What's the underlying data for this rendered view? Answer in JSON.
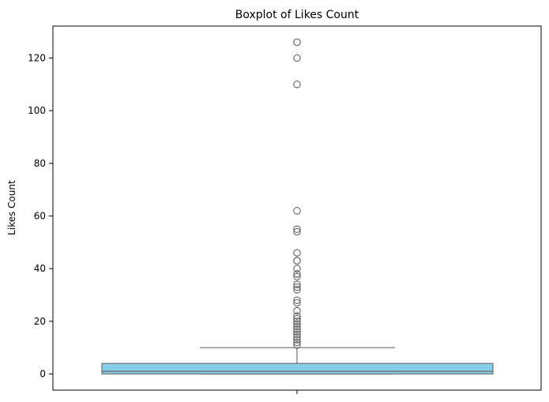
{
  "colors": {
    "box_fill": "#87ceeb",
    "stroke": "#6e6e6e",
    "axis": "#000000",
    "background": "#ffffff"
  },
  "chart_data": {
    "type": "box",
    "title": "Boxplot of Likes Count",
    "xlabel": "",
    "ylabel": "Likes Count",
    "ylim": [
      -2,
      132
    ],
    "yticks": [
      0,
      20,
      40,
      60,
      80,
      100,
      120
    ],
    "grid": false,
    "box": {
      "min": 0,
      "q1": 0,
      "median": 1,
      "q3": 4,
      "whisker_low": 0,
      "whisker_high": 10
    },
    "outliers": [
      11,
      12,
      13,
      14,
      15,
      16,
      17,
      18,
      19,
      20,
      21,
      22,
      24,
      27,
      28,
      32,
      33,
      34,
      37,
      38,
      40,
      43,
      43,
      46,
      54,
      55,
      62,
      110,
      120,
      126
    ]
  }
}
